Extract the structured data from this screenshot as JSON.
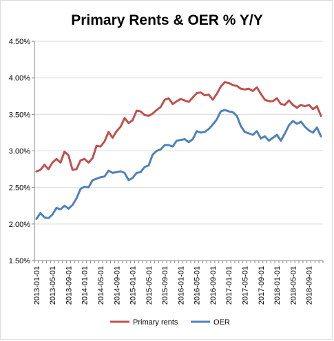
{
  "chart_data": {
    "type": "line",
    "title": "Primary Rents & OER % Y/Y",
    "xlabel": "",
    "ylabel": "",
    "ylim": [
      0.015,
      0.045
    ],
    "y_ticks": [
      "1.50%",
      "2.00%",
      "2.50%",
      "3.00%",
      "3.50%",
      "4.00%",
      "4.50%"
    ],
    "x_tick_labels": [
      "2013-01-01",
      "2013-05-01",
      "2013-09-01",
      "2014-01-01",
      "2014-05-01",
      "2014-09-01",
      "2015-01-01",
      "2015-05-01",
      "2015-09-01",
      "2016-01-01",
      "2016-05-01",
      "2016-09-01",
      "2017-01-01",
      "2017-05-01",
      "2017-09-01",
      "2018-01-01",
      "2018-05-01",
      "2018-09-01"
    ],
    "grid": "horizontal",
    "legend_position": "bottom",
    "start_month": "2013-01",
    "series": [
      {
        "name": "Primary rents",
        "color": "#c0504d",
        "values": [
          0.0272,
          0.0274,
          0.0281,
          0.0275,
          0.0284,
          0.0289,
          0.0284,
          0.0299,
          0.0294,
          0.0274,
          0.0275,
          0.0287,
          0.0289,
          0.0284,
          0.029,
          0.0307,
          0.0306,
          0.0313,
          0.0326,
          0.0318,
          0.0327,
          0.0333,
          0.0345,
          0.0338,
          0.0342,
          0.0355,
          0.0354,
          0.0349,
          0.0348,
          0.0351,
          0.0356,
          0.036,
          0.037,
          0.0372,
          0.0364,
          0.0368,
          0.0371,
          0.0369,
          0.0367,
          0.0373,
          0.0379,
          0.038,
          0.0376,
          0.0377,
          0.037,
          0.0378,
          0.0388,
          0.0394,
          0.0393,
          0.039,
          0.0389,
          0.0385,
          0.0384,
          0.0385,
          0.0382,
          0.0387,
          0.0378,
          0.037,
          0.0368,
          0.0368,
          0.0372,
          0.0364,
          0.0363,
          0.0369,
          0.0363,
          0.0359,
          0.0363,
          0.0361,
          0.0363,
          0.0357,
          0.0361,
          0.0348
        ]
      },
      {
        "name": "OER",
        "color": "#4f81bd",
        "values": [
          0.0207,
          0.0215,
          0.0209,
          0.0208,
          0.0213,
          0.0222,
          0.022,
          0.0225,
          0.0221,
          0.0226,
          0.0235,
          0.0248,
          0.0251,
          0.025,
          0.026,
          0.0262,
          0.0264,
          0.0265,
          0.0273,
          0.027,
          0.0271,
          0.0272,
          0.027,
          0.026,
          0.0263,
          0.027,
          0.0271,
          0.0278,
          0.028,
          0.0295,
          0.03,
          0.0302,
          0.0308,
          0.0308,
          0.0306,
          0.0314,
          0.0315,
          0.0316,
          0.0312,
          0.0316,
          0.0327,
          0.0325,
          0.0326,
          0.033,
          0.0336,
          0.0343,
          0.0354,
          0.0356,
          0.0354,
          0.0353,
          0.0348,
          0.0334,
          0.0326,
          0.0324,
          0.0322,
          0.0327,
          0.0317,
          0.032,
          0.0314,
          0.0318,
          0.0322,
          0.0314,
          0.0324,
          0.0335,
          0.0341,
          0.0337,
          0.034,
          0.0333,
          0.0328,
          0.0325,
          0.0332,
          0.032
        ]
      }
    ]
  }
}
